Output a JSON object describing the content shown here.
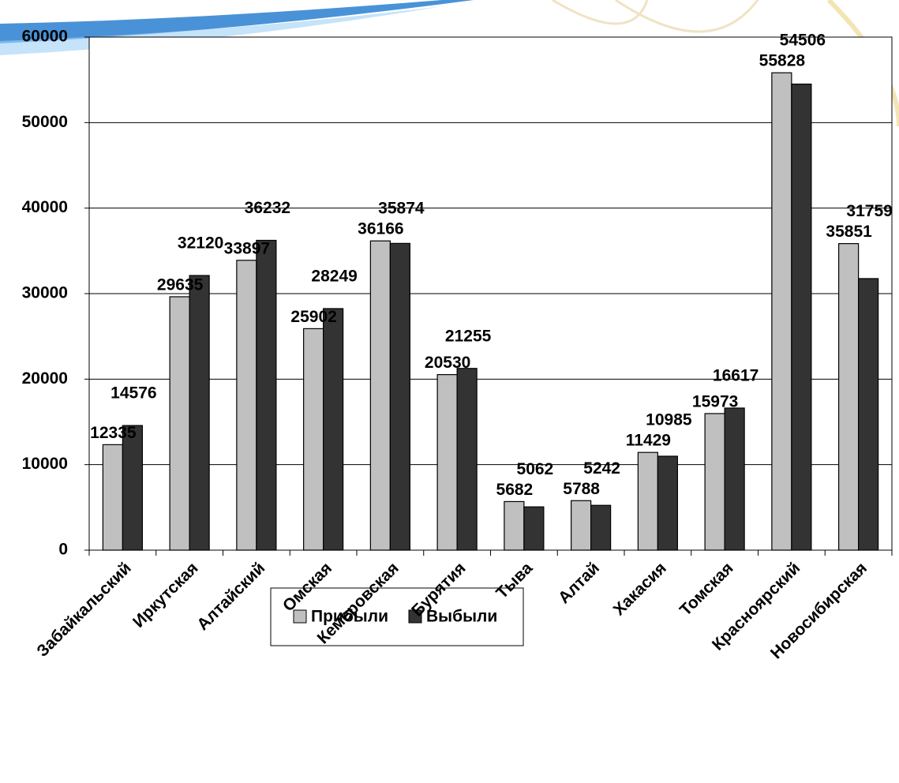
{
  "chart_data": {
    "type": "bar",
    "categories": [
      "Забайкальский",
      "Иркутская",
      "Алтайский",
      "Омская",
      "Кемеровская",
      "Бурятия",
      "Тыва",
      "Алтай",
      "Хакасия",
      "Томская",
      "Красноярский",
      "Новосибирская"
    ],
    "series": [
      {
        "name": "Прибыли",
        "color": "#c0c0c0",
        "values": [
          12335,
          29635,
          33897,
          25902,
          36166,
          20530,
          5682,
          5788,
          11429,
          15973,
          55828,
          35851
        ]
      },
      {
        "name": "Выбыли",
        "color": "#333333",
        "values": [
          14576,
          32120,
          36232,
          28249,
          35874,
          21255,
          5062,
          5242,
          10985,
          16617,
          54506,
          31759
        ]
      }
    ],
    "ylim": [
      0,
      60000
    ],
    "yticks": [
      0,
      10000,
      20000,
      30000,
      40000,
      50000,
      60000
    ],
    "grid": true,
    "legend": "bottom"
  }
}
